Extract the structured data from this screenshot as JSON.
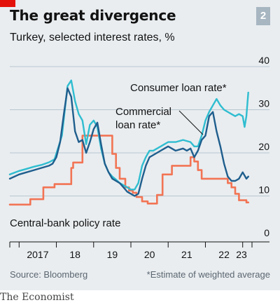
{
  "header": {
    "title": "The great divergence",
    "chart_number": "2",
    "subtitle": "Turkey, selected interest rates, %"
  },
  "footer": {
    "source": "Source: Bloomberg",
    "footnote": "*Estimate of weighted average",
    "brand": "The Economist"
  },
  "colors": {
    "background": "#e9edf0",
    "consumer": "#2fbdd0",
    "commercial": "#1f5e8d",
    "policy": "#f27454",
    "accent": "#e3120b"
  },
  "chart_data": {
    "type": "line",
    "title": "The great divergence",
    "subtitle": "Turkey, selected interest rates, %",
    "ylim": [
      0,
      40
    ],
    "yticks": [
      0,
      10,
      20,
      30,
      40
    ],
    "xlim": [
      2016.75,
      2023.25
    ],
    "xticks": [
      {
        "value": 2017,
        "label": "2017"
      },
      {
        "value": 2018,
        "label": "18"
      },
      {
        "value": 2019,
        "label": "19"
      },
      {
        "value": 2020,
        "label": "20"
      },
      {
        "value": 2021,
        "label": "21"
      },
      {
        "value": 2022,
        "label": "22"
      },
      {
        "value": 2023,
        "label": "23"
      }
    ],
    "grid": true,
    "annotations": {
      "consumer": "Consumer loan rate*",
      "commercial_line1": "Commercial",
      "commercial_line2": "loan rate*",
      "policy": "Central-bank policy rate"
    },
    "series": [
      {
        "key": "consumer",
        "name": "Consumer loan rate*",
        "x": [
          2016.75,
          2017.0,
          2017.2,
          2017.4,
          2017.6,
          2017.8,
          2017.95,
          2018.15,
          2018.3,
          2018.4,
          2018.5,
          2018.6,
          2018.7,
          2018.8,
          2018.9,
          2019.0,
          2019.1,
          2019.2,
          2019.3,
          2019.4,
          2019.5,
          2019.6,
          2019.7,
          2019.8,
          2019.9,
          2020.0,
          2020.1,
          2020.2,
          2020.3,
          2020.4,
          2020.5,
          2020.6,
          2020.7,
          2020.8,
          2020.9,
          2021.0,
          2021.2,
          2021.4,
          2021.6,
          2021.7,
          2021.8,
          2021.9,
          2022.0,
          2022.1,
          2022.2,
          2022.3,
          2022.4,
          2022.5,
          2022.6,
          2022.7,
          2022.8,
          2022.9,
          2023.0,
          2023.05,
          2023.1,
          2023.15
        ],
        "values": [
          15.0,
          15.8,
          16.3,
          16.8,
          17.2,
          17.8,
          18.5,
          24.0,
          35.5,
          36.8,
          32.0,
          29.0,
          27.5,
          22.0,
          26.5,
          27.5,
          26.0,
          21.0,
          17.5,
          15.5,
          14.5,
          13.8,
          13.0,
          12.5,
          12.0,
          11.5,
          11.5,
          13.0,
          17.0,
          19.0,
          20.5,
          20.5,
          21.0,
          21.5,
          22.0,
          22.5,
          22.5,
          23.0,
          22.5,
          21.5,
          21.5,
          24.0,
          27.5,
          29.5,
          31.0,
          32.5,
          31.0,
          30.0,
          29.5,
          29.0,
          28.5,
          29.0,
          28.5,
          26.0,
          28.5,
          34.0
        ]
      },
      {
        "key": "commercial",
        "name": "Commercial loan rate*",
        "x": [
          2016.75,
          2017.0,
          2017.2,
          2017.4,
          2017.6,
          2017.8,
          2017.9,
          2018.0,
          2018.1,
          2018.2,
          2018.3,
          2018.4,
          2018.5,
          2018.6,
          2018.7,
          2018.8,
          2018.9,
          2019.0,
          2019.1,
          2019.2,
          2019.3,
          2019.4,
          2019.5,
          2019.6,
          2019.7,
          2019.8,
          2019.9,
          2020.0,
          2020.1,
          2020.2,
          2020.3,
          2020.4,
          2020.5,
          2020.6,
          2020.7,
          2020.8,
          2020.9,
          2021.0,
          2021.2,
          2021.4,
          2021.5,
          2021.6,
          2021.7,
          2021.8,
          2021.9,
          2022.0,
          2022.1,
          2022.2,
          2022.3,
          2022.4,
          2022.5,
          2022.6,
          2022.7,
          2022.8,
          2022.9,
          2023.0,
          2023.1,
          2023.15
        ],
        "values": [
          14.0,
          15.0,
          15.5,
          16.0,
          16.5,
          17.0,
          17.5,
          19.0,
          22.5,
          29.0,
          35.0,
          33.0,
          25.0,
          22.5,
          23.0,
          20.0,
          22.5,
          25.5,
          27.0,
          22.0,
          17.5,
          15.5,
          14.0,
          13.5,
          13.0,
          12.0,
          11.0,
          10.5,
          10.0,
          10.5,
          14.0,
          17.0,
          19.0,
          19.5,
          20.0,
          20.5,
          21.0,
          21.5,
          20.5,
          21.0,
          20.5,
          21.0,
          19.0,
          20.5,
          23.0,
          24.0,
          28.5,
          29.5,
          25.0,
          21.5,
          17.5,
          14.5,
          13.5,
          13.5,
          14.0,
          15.5,
          14.0,
          14.5
        ]
      },
      {
        "key": "policy",
        "name": "Central-bank policy rate",
        "x": [
          2016.75,
          2017.3,
          2017.3,
          2017.65,
          2017.65,
          2017.95,
          2017.95,
          2018.4,
          2018.4,
          2018.45,
          2018.45,
          2018.7,
          2018.7,
          2019.5,
          2019.5,
          2019.6,
          2019.6,
          2019.7,
          2019.7,
          2019.85,
          2019.85,
          2019.95,
          2019.95,
          2020.05,
          2020.05,
          2020.15,
          2020.15,
          2020.3,
          2020.3,
          2020.45,
          2020.45,
          2020.7,
          2020.7,
          2020.85,
          2020.85,
          2021.1,
          2021.1,
          2021.6,
          2021.6,
          2021.7,
          2021.7,
          2021.8,
          2021.8,
          2021.9,
          2021.9,
          2022.6,
          2022.6,
          2022.7,
          2022.7,
          2022.8,
          2022.8,
          2022.9,
          2022.9,
          2023.1,
          2023.1,
          2023.15
        ],
        "values": [
          8.0,
          8.0,
          9.25,
          9.25,
          12.0,
          12.0,
          12.75,
          12.75,
          16.5,
          16.5,
          17.75,
          17.75,
          24.0,
          24.0,
          19.75,
          19.75,
          16.5,
          16.5,
          14.0,
          14.0,
          12.0,
          12.0,
          11.25,
          11.25,
          10.75,
          10.75,
          9.75,
          9.75,
          8.75,
          8.75,
          8.25,
          8.25,
          10.25,
          10.25,
          15.0,
          15.0,
          17.0,
          17.0,
          19.0,
          19.0,
          18.0,
          18.0,
          16.0,
          16.0,
          14.0,
          14.0,
          13.0,
          13.0,
          12.0,
          12.0,
          10.5,
          10.5,
          9.0,
          9.0,
          8.5,
          8.5
        ]
      }
    ]
  }
}
